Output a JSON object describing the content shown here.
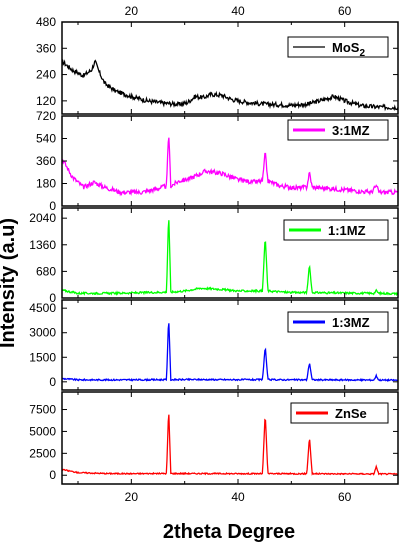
{
  "chart_data": {
    "type": "line",
    "xlabel": "2theta Degree",
    "ylabel": "Intensity (a.u)",
    "xlim": [
      7,
      70
    ],
    "x_ticks": [
      20,
      40,
      60
    ],
    "legend_position": "top-right",
    "panels": [
      {
        "name": "MoS2",
        "legend_label": "MoS",
        "legend_sub": "2",
        "color": "#000000",
        "ylim": [
          60,
          480
        ],
        "y_ticks": [
          120,
          240,
          360,
          480
        ],
        "y_tick_labels": [
          "120",
          "240",
          "360",
          "480"
        ],
        "points": [
          [
            7,
            300
          ],
          [
            9,
            260
          ],
          [
            11,
            235
          ],
          [
            12.5,
            260
          ],
          [
            13.2,
            300
          ],
          [
            14,
            250
          ],
          [
            15,
            200
          ],
          [
            17,
            165
          ],
          [
            20,
            140
          ],
          [
            23,
            120
          ],
          [
            26,
            110
          ],
          [
            29,
            104
          ],
          [
            30.5,
            112
          ],
          [
            32,
            140
          ],
          [
            33.5,
            135
          ],
          [
            35,
            150
          ],
          [
            37,
            145
          ],
          [
            39,
            125
          ],
          [
            42,
            112
          ],
          [
            45,
            105
          ],
          [
            50,
            100
          ],
          [
            53,
            105
          ],
          [
            56,
            125
          ],
          [
            58,
            140
          ],
          [
            60,
            120
          ],
          [
            63,
            98
          ],
          [
            66,
            92
          ],
          [
            70,
            90
          ]
        ],
        "noise": 10
      },
      {
        "name": "3:1MZ",
        "legend_label": "3:1MZ",
        "color": "#ff00ff",
        "ylim": [
          0,
          720
        ],
        "y_ticks": [
          0,
          180,
          360,
          540,
          720
        ],
        "y_tick_labels": [
          "0",
          "180",
          "360",
          "540",
          "720"
        ],
        "points": [
          [
            7,
            380
          ],
          [
            9,
            230
          ],
          [
            11,
            150
          ],
          [
            13,
            190
          ],
          [
            15,
            150
          ],
          [
            18,
            110
          ],
          [
            22,
            110
          ],
          [
            25,
            140
          ],
          [
            26.6,
            160
          ],
          [
            27,
            600
          ],
          [
            27.4,
            160
          ],
          [
            29,
            200
          ],
          [
            31,
            220
          ],
          [
            34,
            280
          ],
          [
            37,
            260
          ],
          [
            40,
            210
          ],
          [
            43,
            190
          ],
          [
            44.6,
            200
          ],
          [
            45.1,
            430
          ],
          [
            45.6,
            200
          ],
          [
            48,
            160
          ],
          [
            51,
            145
          ],
          [
            52.9,
            150
          ],
          [
            53.4,
            270
          ],
          [
            53.9,
            150
          ],
          [
            57,
            140
          ],
          [
            60,
            130
          ],
          [
            65,
            110
          ],
          [
            65.9,
            160
          ],
          [
            66.5,
            110
          ],
          [
            70,
            110
          ]
        ],
        "noise": 18
      },
      {
        "name": "1:1MZ",
        "legend_label": "1:1MZ",
        "color": "#00ff00",
        "ylim": [
          0,
          2300
        ],
        "y_ticks": [
          0,
          680,
          1360,
          2040
        ],
        "y_tick_labels": [
          "0",
          "680",
          "1360",
          "2040"
        ],
        "points": [
          [
            7,
            200
          ],
          [
            10,
            120
          ],
          [
            15,
            120
          ],
          [
            20,
            130
          ],
          [
            26.6,
            150
          ],
          [
            27,
            2200
          ],
          [
            27.4,
            150
          ],
          [
            30,
            180
          ],
          [
            33,
            250
          ],
          [
            36,
            230
          ],
          [
            40,
            180
          ],
          [
            44.6,
            180
          ],
          [
            45.1,
            1600
          ],
          [
            45.6,
            180
          ],
          [
            50,
            140
          ],
          [
            52.9,
            140
          ],
          [
            53.4,
            850
          ],
          [
            53.9,
            140
          ],
          [
            58,
            130
          ],
          [
            65.5,
            120
          ],
          [
            65.9,
            190
          ],
          [
            66.4,
            120
          ],
          [
            70,
            110
          ]
        ],
        "noise": 25
      },
      {
        "name": "1:3MZ",
        "legend_label": "1:3MZ",
        "color": "#0000ff",
        "ylim": [
          -500,
          5000
        ],
        "y_ticks": [
          0,
          1500,
          3000,
          4500
        ],
        "y_tick_labels": [
          "0",
          "1500",
          "3000",
          "4500"
        ],
        "points": [
          [
            7,
            200
          ],
          [
            10,
            120
          ],
          [
            15,
            120
          ],
          [
            20,
            120
          ],
          [
            26.6,
            130
          ],
          [
            27,
            4000
          ],
          [
            27.4,
            130
          ],
          [
            32,
            140
          ],
          [
            38,
            130
          ],
          [
            44.6,
            130
          ],
          [
            45.1,
            2200
          ],
          [
            45.6,
            130
          ],
          [
            52.9,
            120
          ],
          [
            53.4,
            1200
          ],
          [
            53.9,
            120
          ],
          [
            65.5,
            110
          ],
          [
            65.9,
            380
          ],
          [
            66.4,
            110
          ],
          [
            70,
            100
          ]
        ],
        "noise": 45
      },
      {
        "name": "ZnSe",
        "legend_label": "ZnSe",
        "color": "#ff0000",
        "ylim": [
          -1000,
          9500
        ],
        "y_ticks": [
          0,
          2500,
          5000,
          7500
        ],
        "y_tick_labels": [
          "0",
          "2500",
          "5000",
          "7500"
        ],
        "points": [
          [
            7,
            650
          ],
          [
            10,
            300
          ],
          [
            15,
            200
          ],
          [
            20,
            180
          ],
          [
            26.6,
            200
          ],
          [
            27,
            7600
          ],
          [
            27.4,
            200
          ],
          [
            34,
            190
          ],
          [
            40,
            180
          ],
          [
            44.6,
            180
          ],
          [
            45.1,
            7100
          ],
          [
            45.6,
            180
          ],
          [
            52.9,
            170
          ],
          [
            53.4,
            4400
          ],
          [
            53.9,
            170
          ],
          [
            65.5,
            150
          ],
          [
            65.9,
            1000
          ],
          [
            66.4,
            150
          ],
          [
            70,
            140
          ]
        ],
        "noise": 70
      }
    ]
  }
}
